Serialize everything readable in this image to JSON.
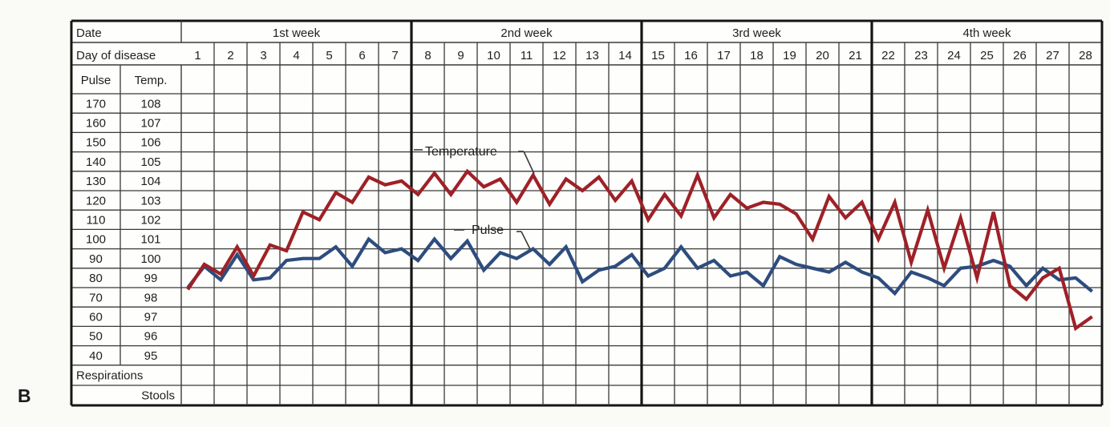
{
  "figure_label": "B",
  "table": {
    "date_label": "Date",
    "day_label": "Day of disease",
    "pulse_header": "Pulse",
    "temp_header": "Temp.",
    "respirations_label": "Respirations",
    "stools_label": "Stools",
    "weeks": [
      "1st week",
      "2nd week",
      "3rd week",
      "4th week"
    ],
    "days": [
      1,
      2,
      3,
      4,
      5,
      6,
      7,
      8,
      9,
      10,
      11,
      12,
      13,
      14,
      15,
      16,
      17,
      18,
      19,
      20,
      21,
      22,
      23,
      24,
      25,
      26,
      27,
      28
    ],
    "pulse_scale": [
      170,
      160,
      150,
      140,
      130,
      120,
      110,
      100,
      90,
      80,
      70,
      60,
      50,
      40
    ],
    "temp_scale": [
      108,
      107,
      106,
      105,
      104,
      103,
      102,
      101,
      100,
      99,
      98,
      97,
      96,
      95
    ]
  },
  "chart_data": {
    "type": "line",
    "title": "",
    "x_description": "Day of disease 1-28, two readings per day (morning and evening)",
    "x_days": 28,
    "readings_per_day": 2,
    "temp_axis_range": [
      95,
      108
    ],
    "pulse_axis_range": [
      40,
      170
    ],
    "grid": true,
    "series": [
      {
        "name": "Temperature",
        "axis": "temp",
        "color": "#9e2127",
        "values": [
          98.4,
          99.7,
          99.2,
          100.6,
          99.1,
          100.7,
          100.4,
          102.4,
          102.0,
          103.4,
          102.9,
          104.2,
          103.8,
          104.0,
          103.3,
          104.4,
          103.3,
          104.5,
          103.7,
          104.1,
          102.9,
          104.3,
          102.8,
          104.1,
          103.5,
          104.2,
          103.0,
          104.0,
          102.0,
          103.3,
          102.2,
          104.3,
          102.1,
          103.3,
          102.6,
          102.9,
          102.8,
          102.3,
          101.0,
          103.2,
          102.1,
          102.9,
          101.0,
          102.9,
          99.8,
          102.5,
          99.5,
          102.1,
          99.0,
          102.4,
          98.6,
          97.9,
          99.0,
          99.5,
          96.4,
          97.0
        ]
      },
      {
        "name": "Pulse",
        "axis": "pulse",
        "color": "#2e4c7e",
        "values": [
          75,
          86,
          79,
          92,
          79,
          80,
          89,
          90,
          90,
          96,
          86,
          100,
          93,
          95,
          89,
          100,
          90,
          99,
          84,
          93,
          90,
          95,
          87,
          96,
          78,
          84,
          86,
          92,
          81,
          85,
          96,
          85,
          89,
          81,
          83,
          76,
          91,
          87,
          85,
          83,
          88,
          83,
          80,
          72,
          83,
          80,
          76,
          85,
          86,
          89,
          86,
          76,
          85,
          79,
          80,
          73
        ]
      }
    ]
  },
  "colors": {
    "background": "#fafaf7",
    "table_fill": "#fefefc",
    "grid": "#3a3a3a",
    "border": "#151515",
    "text": "#1f1f1f",
    "temperature_line": "#9e2127",
    "pulse_line": "#2e4c7e"
  }
}
